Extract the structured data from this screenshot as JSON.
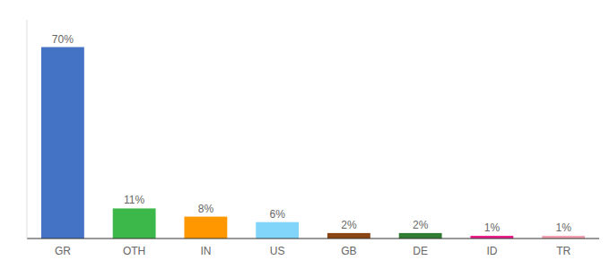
{
  "chart_data": {
    "type": "bar",
    "categories": [
      "GR",
      "OTH",
      "IN",
      "US",
      "GB",
      "DE",
      "ID",
      "TR"
    ],
    "values": [
      70,
      11,
      8,
      6,
      2,
      2,
      1,
      1
    ],
    "value_labels": [
      "70%",
      "11%",
      "8%",
      "6%",
      "2%",
      "2%",
      "1%",
      "1%"
    ],
    "colors": [
      "#4472C4",
      "#3CB84A",
      "#FF9800",
      "#81D4FA",
      "#8B4513",
      "#2E7D32",
      "#E91E8C",
      "#F4A0B0"
    ],
    "ylim": [
      0,
      80
    ],
    "grid": false,
    "data_labels": true,
    "tick_labels": "x"
  }
}
